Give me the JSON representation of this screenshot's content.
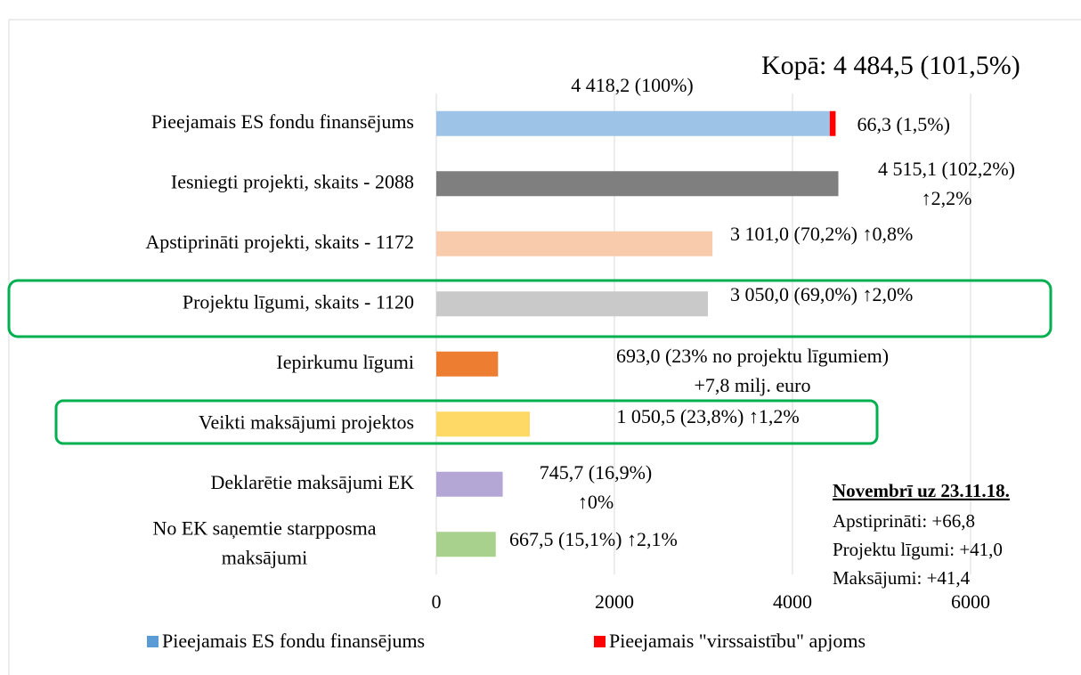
{
  "chart_data": {
    "type": "bar",
    "orientation": "horizontal",
    "stacked": true,
    "categories": [
      "Pieejamais ES fondu finansējums",
      "Iesniegti projekti, skaits - 2088",
      "Apstiprināti projekti, skaits - 1172",
      "Projektu līgumi, skaits - 1120",
      "Iepirkumu līgumi",
      "Veikti maksājumi projektos",
      "Deklarētie maksājumi EK",
      "No EK saņemtie starpposma\nmaksājumi"
    ],
    "series": [
      {
        "name": "Pieejamais ES fondu finansējums",
        "color": "#5b9bd5",
        "bar_colors": [
          "#9dc3e6",
          "#7f7f7f",
          "#f8cbad",
          "#c9c9c9",
          "#ed7d31",
          "#ffd966",
          "#b4a7d6",
          "#a9d18e"
        ],
        "values": [
          4418.2,
          4515.1,
          3101.0,
          3050.0,
          693.0,
          1050.5,
          745.7,
          667.5
        ],
        "value_labels": [
          "4 418,2 (100%)",
          "4 515,1 (102,2%)\n↑2,2%",
          "3 101,0 (70,2%) ↑0,8%",
          "3 050,0 (69,0%) ↑2,0%",
          "693,0 (23% no projektu līgumiem)\n+7,8 milj. euro",
          "1 050,5 (23,8%) ↑1,2%",
          "745,7 (16,9%)\n↑0%",
          "667,5 (15,1%) ↑2,1%"
        ]
      },
      {
        "name": "Pieejamais \"virssaistību\" apjoms",
        "color": "#ff0000",
        "values": [
          66.3,
          null,
          null,
          null,
          null,
          null,
          null,
          null
        ],
        "value_labels": [
          "66,3 (1,5%)",
          null,
          null,
          null,
          null,
          null,
          null,
          null
        ]
      }
    ],
    "xlim": [
      0,
      6000
    ],
    "xticks": [
      0,
      2000,
      4000,
      6000
    ],
    "grid": true,
    "legend": "bottom",
    "annotations": [
      "Kopā: 4 484,5 (101,5%)"
    ],
    "note_box": {
      "title": "Novembrī uz 23.11.18.",
      "lines": [
        "Apstiprināti: +66,8",
        "Projektu līgumi: +41,0",
        "Maksājumi: +41,4"
      ]
    }
  }
}
